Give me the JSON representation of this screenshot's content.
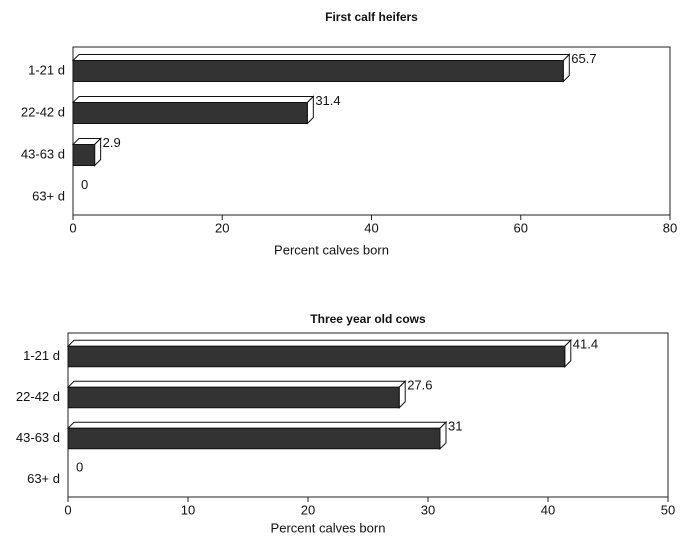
{
  "chart_data": [
    {
      "type": "bar",
      "orientation": "horizontal",
      "title": "First calf heifers",
      "categories": [
        "1-21 d",
        "22-42 d",
        "43-63 d",
        "63+ d"
      ],
      "values": [
        65.7,
        31.4,
        2.9,
        0
      ],
      "color": "#333333",
      "xlim": [
        0,
        80
      ],
      "xticks": [
        0,
        20,
        40,
        60,
        80
      ],
      "xlabel": "Percent calves born"
    },
    {
      "type": "bar",
      "orientation": "horizontal",
      "title": "Three year old cows",
      "categories": [
        "1-21 d",
        "22-42 d",
        "43-63 d",
        "63+ d"
      ],
      "values": [
        41.4,
        27.6,
        31,
        0
      ],
      "color": "#333333",
      "xlim": [
        0,
        50
      ],
      "xticks": [
        0,
        10,
        20,
        30,
        40,
        50
      ],
      "xlabel": "Percent calves born"
    }
  ]
}
